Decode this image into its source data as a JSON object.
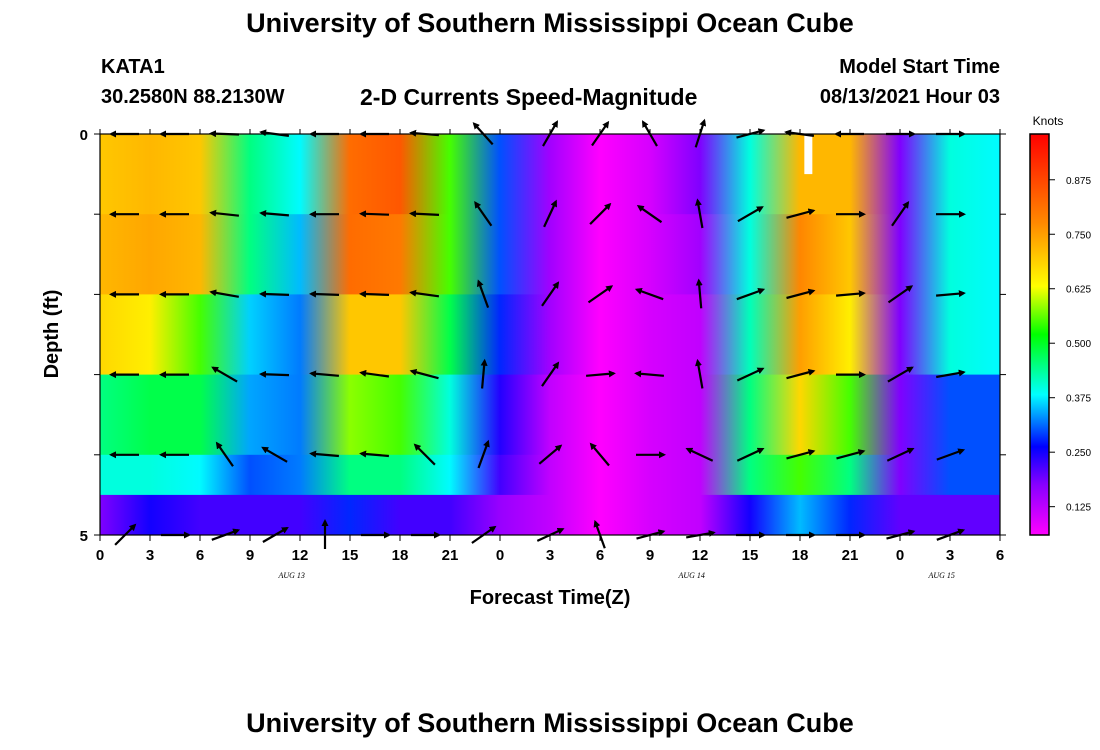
{
  "page": {
    "title_top": "University of Southern Mississippi Ocean Cube",
    "title_bottom": "University of Southern Mississippi Ocean Cube",
    "station": "KATA1",
    "coordinates": "30.2580N  88.2130W",
    "subtitle": "2-D Currents Speed-Magnitude",
    "start_label": "Model Start Time",
    "start_value": "08/13/2021 Hour 03"
  },
  "chart_data": {
    "type": "heatmap",
    "xlabel": "Forecast Time(Z)",
    "ylabel": "Depth (ft)",
    "x_hours": [
      0,
      3,
      6,
      9,
      12,
      15,
      18,
      21,
      24,
      27,
      30,
      33,
      36,
      39,
      42,
      45,
      48,
      51,
      54
    ],
    "x_tick_labels": [
      "0",
      "3",
      "6",
      "9",
      "12",
      "15",
      "18",
      "21",
      "0",
      "3",
      "6",
      "9",
      "12",
      "15",
      "18",
      "21",
      "0",
      "3",
      "6"
    ],
    "date_labels": [
      {
        "hour": 11.5,
        "text": "AUG 13"
      },
      {
        "hour": 35.5,
        "text": "AUG 14"
      },
      {
        "hour": 50.5,
        "text": "AUG 15"
      }
    ],
    "y_range": [
      0,
      5
    ],
    "y_tick_labels": [
      {
        "depth": 0,
        "text": "0"
      },
      {
        "depth": 5,
        "text": "5"
      }
    ],
    "y_minor_ticks": [
      0,
      1,
      2,
      3,
      4,
      5
    ],
    "colorbar": {
      "label": "Knots",
      "range": [
        0.06,
        0.98
      ],
      "ticks": [
        "0.125",
        "0.250",
        "0.375",
        "0.500",
        "0.625",
        "0.750",
        "0.875"
      ]
    },
    "layer_depths": [
      0,
      1,
      2,
      3,
      4,
      4.5
    ],
    "profile_hours": [
      0,
      3,
      6,
      9,
      12,
      15,
      18,
      21,
      24,
      27,
      30,
      33,
      36,
      39,
      42,
      45,
      48,
      51,
      54
    ],
    "speed_knots": [
      [
        0.7,
        0.72,
        0.7,
        0.45,
        0.38,
        0.82,
        0.85,
        0.55,
        0.3,
        0.15,
        0.06,
        0.1,
        0.18,
        0.4,
        0.72,
        0.72,
        0.18,
        0.4,
        0.38
      ],
      [
        0.72,
        0.74,
        0.72,
        0.45,
        0.35,
        0.82,
        0.8,
        0.55,
        0.3,
        0.15,
        0.06,
        0.1,
        0.15,
        0.4,
        0.78,
        0.7,
        0.18,
        0.4,
        0.38
      ],
      [
        0.68,
        0.65,
        0.55,
        0.36,
        0.32,
        0.7,
        0.7,
        0.48,
        0.28,
        0.15,
        0.06,
        0.1,
        0.12,
        0.42,
        0.75,
        0.65,
        0.18,
        0.4,
        0.38
      ],
      [
        0.45,
        0.48,
        0.48,
        0.34,
        0.32,
        0.58,
        0.55,
        0.4,
        0.24,
        0.12,
        0.06,
        0.1,
        0.12,
        0.45,
        0.68,
        0.55,
        0.18,
        0.3,
        0.3
      ],
      [
        0.4,
        0.4,
        0.38,
        0.3,
        0.32,
        0.45,
        0.45,
        0.38,
        0.22,
        0.12,
        0.06,
        0.1,
        0.12,
        0.45,
        0.55,
        0.45,
        0.18,
        0.3,
        0.3
      ],
      [
        0.18,
        0.25,
        0.22,
        0.22,
        0.22,
        0.28,
        0.22,
        0.22,
        0.16,
        0.12,
        0.06,
        0.1,
        0.12,
        0.25,
        0.35,
        0.28,
        0.2,
        0.2,
        0.2
      ]
    ],
    "vector_hours": [
      1.5,
      4.5,
      7.5,
      10.5,
      13.5,
      16.5,
      19.5,
      23,
      27,
      30,
      33,
      36,
      39,
      42,
      45,
      48,
      51
    ],
    "vector_depths": [
      0,
      1,
      2,
      3,
      4,
      5
    ],
    "vector_angles_deg": [
      [
        180,
        180,
        178,
        172,
        180,
        180,
        175,
        132,
        60,
        55,
        120,
        72,
        15,
        172,
        180,
        0,
        0
      ],
      [
        180,
        180,
        174,
        175,
        180,
        178,
        177,
        125,
        65,
        45,
        145,
        100,
        30,
        15,
        0,
        55,
        0
      ],
      [
        180,
        180,
        170,
        178,
        178,
        178,
        172,
        110,
        55,
        35,
        160,
        95,
        20,
        15,
        5,
        35,
        5
      ],
      [
        180,
        180,
        150,
        178,
        175,
        172,
        165,
        85,
        55,
        5,
        175,
        100,
        25,
        15,
        0,
        30,
        10
      ],
      [
        180,
        180,
        125,
        150,
        175,
        175,
        135,
        70,
        40,
        130,
        0,
        155,
        25,
        15,
        15,
        25,
        20
      ],
      [
        45,
        0,
        20,
        30,
        90,
        0,
        0,
        35,
        25,
        110,
        15,
        10,
        0,
        0,
        0,
        15,
        20
      ]
    ],
    "vector_scale": 0.5,
    "missing": [
      {
        "hour": 42.5,
        "depth_from": 0,
        "depth_to": 0.5
      }
    ]
  }
}
